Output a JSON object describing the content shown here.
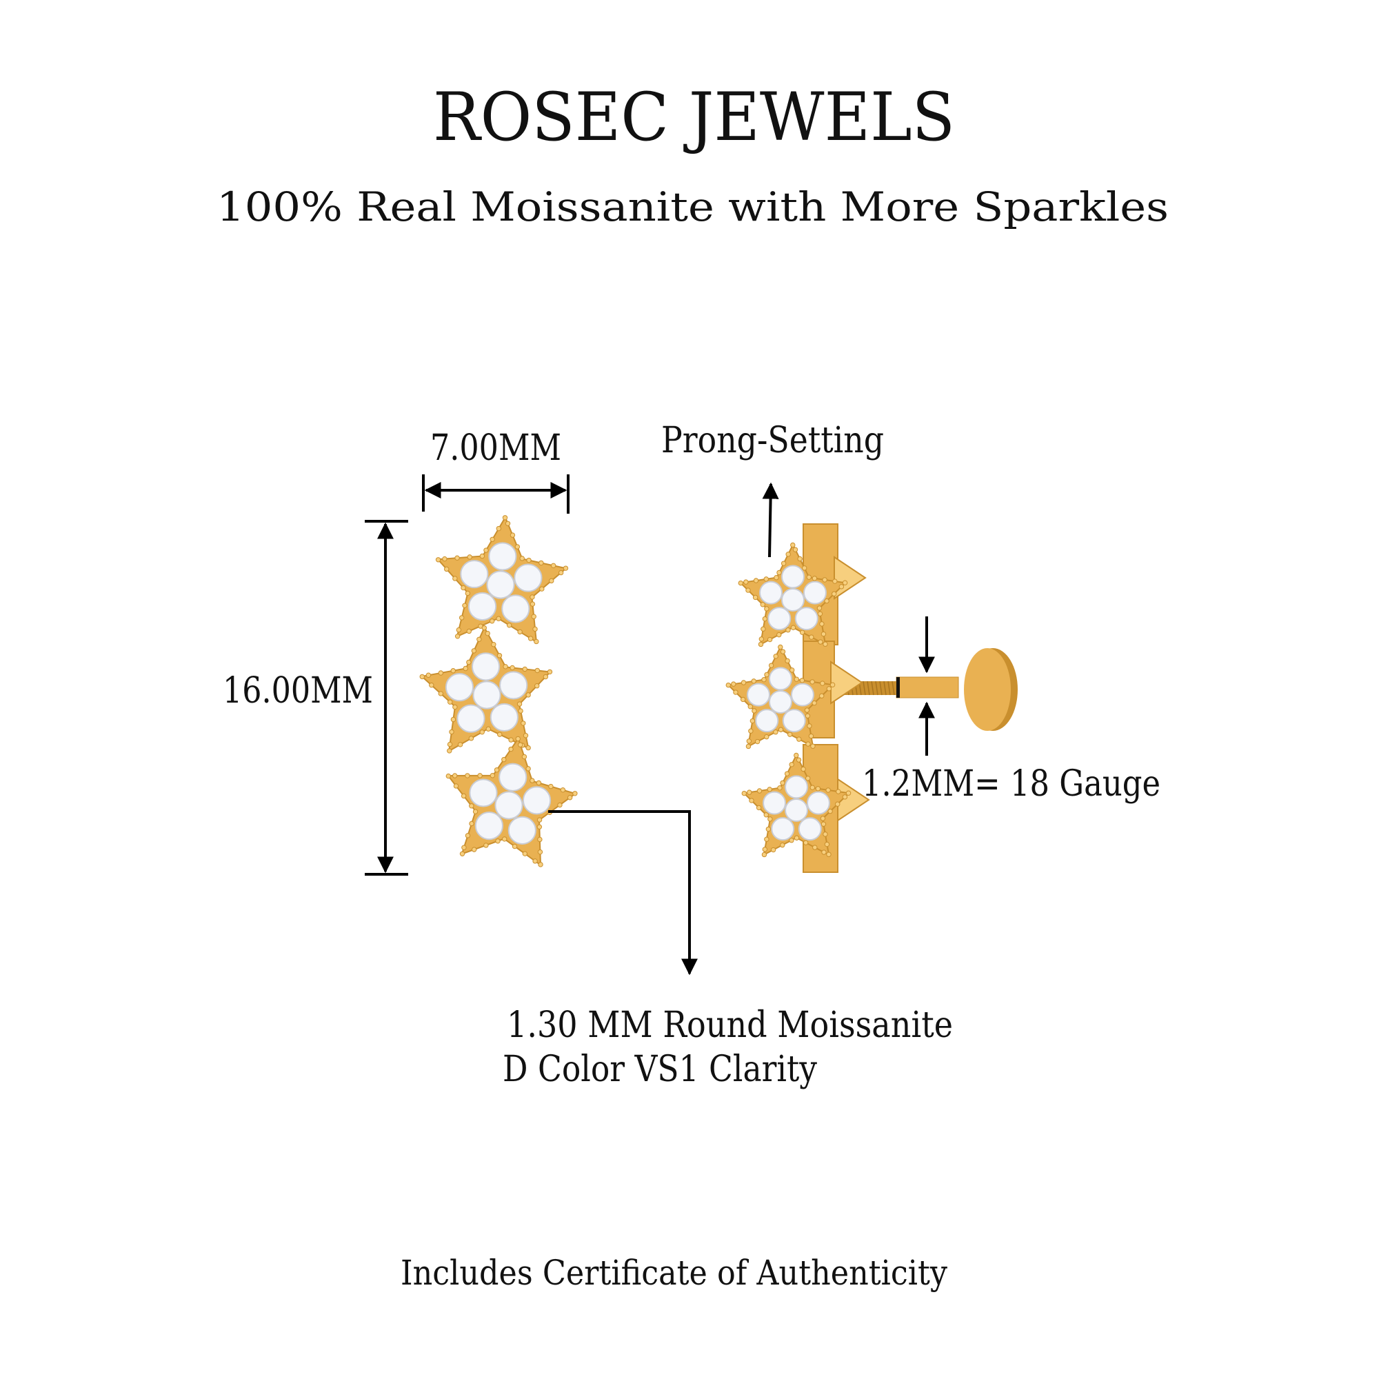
{
  "header": {
    "brand": "ROSEC JEWELS",
    "tagline": "100% Real Moissanite with More Sparkles"
  },
  "dimensions": {
    "width_label": "7.00MM",
    "height_label": "16.00MM",
    "setting_label": "Prong-Setting",
    "gauge_label": "1.2MM=  18 Gauge"
  },
  "stone": {
    "line1": "1.30 MM Round Moissanite",
    "line2": "D Color VS1 Clarity"
  },
  "footer": {
    "certificate": "Includes Certificate of Authenticity"
  },
  "colors": {
    "gold": "#E9B152",
    "gold_dark": "#C98F2E",
    "gold_light": "#F7CF7E",
    "gem": "#F4F6FA",
    "line": "#000000"
  },
  "icons": {
    "product": "star-climber-earring"
  }
}
